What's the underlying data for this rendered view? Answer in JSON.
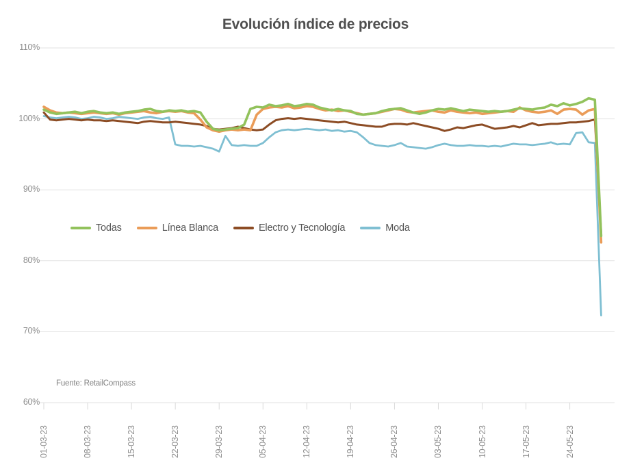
{
  "chart_data": {
    "type": "line",
    "title": "Evolución índice de precios",
    "source": "Fuente: RetailCompass",
    "ylim": [
      60,
      110
    ],
    "grid": "horizontal",
    "legend_position": "inside-left-middle",
    "y_ticks": [
      110,
      100,
      90,
      80,
      70,
      60
    ],
    "y_ticklabels": [
      "110%",
      "100%",
      "90%",
      "80%",
      "70%",
      "60%"
    ],
    "x_ticklabels": [
      "01-03-23",
      "08-03-23",
      "15-03-23",
      "22-03-23",
      "29-03-23",
      "05-04-23",
      "12-04-23",
      "19-04-23",
      "26-04-23",
      "03-05-23",
      "10-05-23",
      "17-05-23",
      "24-05-23"
    ],
    "x": [
      "01-03-23",
      "02-03-23",
      "03-03-23",
      "04-03-23",
      "05-03-23",
      "06-03-23",
      "07-03-23",
      "08-03-23",
      "09-03-23",
      "10-03-23",
      "11-03-23",
      "12-03-23",
      "13-03-23",
      "14-03-23",
      "15-03-23",
      "16-03-23",
      "17-03-23",
      "18-03-23",
      "19-03-23",
      "20-03-23",
      "21-03-23",
      "22-03-23",
      "23-03-23",
      "24-03-23",
      "25-03-23",
      "26-03-23",
      "27-03-23",
      "28-03-23",
      "29-03-23",
      "30-03-23",
      "31-03-23",
      "01-04-23",
      "02-04-23",
      "03-04-23",
      "04-04-23",
      "05-04-23",
      "06-04-23",
      "07-04-23",
      "08-04-23",
      "09-04-23",
      "10-04-23",
      "11-04-23",
      "12-04-23",
      "13-04-23",
      "14-04-23",
      "15-04-23",
      "16-04-23",
      "17-04-23",
      "18-04-23",
      "19-04-23",
      "20-04-23",
      "21-04-23",
      "22-04-23",
      "23-04-23",
      "24-04-23",
      "25-04-23",
      "26-04-23",
      "27-04-23",
      "28-04-23",
      "29-04-23",
      "30-04-23",
      "01-05-23",
      "02-05-23",
      "03-05-23",
      "04-05-23",
      "05-05-23",
      "06-05-23",
      "07-05-23",
      "08-05-23",
      "09-05-23",
      "10-05-23",
      "11-05-23",
      "12-05-23",
      "13-05-23",
      "14-05-23",
      "15-05-23",
      "16-05-23",
      "17-05-23",
      "18-05-23",
      "19-05-23",
      "20-05-23",
      "21-05-23",
      "22-05-23",
      "23-05-23",
      "24-05-23",
      "25-05-23",
      "26-05-23",
      "27-05-23",
      "28-05-23",
      "29-05-23"
    ],
    "series": [
      {
        "name": "Todas",
        "color": "#92c25c",
        "values": [
          101.3,
          100.9,
          100.7,
          100.8,
          100.9,
          101.0,
          100.8,
          101.0,
          101.1,
          100.9,
          100.8,
          100.9,
          100.7,
          100.9,
          101.0,
          101.1,
          101.3,
          101.4,
          101.1,
          101.0,
          101.2,
          101.1,
          101.2,
          101.0,
          101.1,
          100.9,
          99.6,
          98.6,
          98.4,
          98.5,
          98.6,
          98.7,
          99.2,
          101.4,
          101.7,
          101.6,
          102.0,
          101.8,
          101.9,
          102.1,
          101.8,
          101.9,
          102.1,
          102.0,
          101.6,
          101.4,
          101.2,
          101.4,
          101.2,
          101.1,
          100.7,
          100.6,
          100.7,
          100.8,
          101.1,
          101.3,
          101.4,
          101.5,
          101.2,
          100.9,
          100.7,
          100.9,
          101.2,
          101.4,
          101.3,
          101.5,
          101.3,
          101.1,
          101.3,
          101.2,
          101.1,
          101.0,
          101.1,
          101.0,
          101.1,
          101.3,
          101.5,
          101.4,
          101.3,
          101.5,
          101.6,
          102.0,
          101.8,
          102.2,
          101.9,
          102.1,
          102.4,
          102.9,
          102.7,
          83.5
        ]
      },
      {
        "name": "Línea Blanca",
        "color": "#ea9c58",
        "values": [
          101.7,
          101.2,
          100.9,
          100.8,
          100.9,
          100.8,
          100.7,
          100.8,
          100.9,
          100.8,
          100.7,
          100.8,
          100.6,
          100.8,
          100.9,
          101.0,
          101.1,
          100.9,
          100.8,
          101.0,
          101.1,
          101.0,
          101.1,
          100.9,
          100.8,
          99.9,
          98.8,
          98.4,
          98.2,
          98.4,
          98.5,
          98.4,
          98.5,
          98.4,
          100.6,
          101.4,
          101.6,
          101.7,
          101.6,
          101.8,
          101.5,
          101.6,
          101.8,
          101.7,
          101.4,
          101.2,
          101.3,
          101.1,
          101.2,
          101.0,
          100.8,
          100.6,
          100.7,
          100.8,
          101.0,
          101.2,
          101.4,
          101.3,
          101.0,
          100.9,
          101.0,
          101.1,
          101.2,
          101.0,
          100.9,
          101.2,
          101.0,
          100.9,
          100.8,
          100.9,
          100.7,
          100.8,
          100.9,
          101.0,
          101.1,
          101.0,
          101.6,
          101.2,
          101.0,
          100.9,
          101.0,
          101.2,
          100.7,
          101.3,
          101.4,
          101.3,
          100.6,
          101.2,
          101.4,
          82.6
        ]
      },
      {
        "name": "Electro y Tecnología",
        "color": "#8c4c24",
        "values": [
          100.9,
          99.9,
          99.8,
          99.9,
          100.0,
          99.9,
          99.8,
          99.9,
          99.8,
          99.8,
          99.7,
          99.8,
          99.7,
          99.6,
          99.5,
          99.4,
          99.6,
          99.7,
          99.6,
          99.5,
          99.5,
          99.6,
          99.5,
          99.4,
          99.3,
          99.2,
          99.0,
          98.6,
          98.5,
          98.6,
          98.7,
          98.9,
          98.7,
          98.5,
          98.4,
          98.5,
          99.2,
          99.8,
          100.0,
          100.1,
          100.0,
          100.1,
          100.0,
          99.9,
          99.8,
          99.7,
          99.6,
          99.5,
          99.6,
          99.4,
          99.2,
          99.1,
          99.0,
          98.9,
          98.9,
          99.2,
          99.3,
          99.3,
          99.2,
          99.4,
          99.2,
          99.0,
          98.8,
          98.6,
          98.3,
          98.5,
          98.8,
          98.7,
          98.9,
          99.1,
          99.2,
          98.9,
          98.6,
          98.7,
          98.8,
          99.0,
          98.8,
          99.1,
          99.4,
          99.1,
          99.2,
          99.3,
          99.3,
          99.4,
          99.5,
          99.5,
          99.6,
          99.7,
          99.9,
          83.9
        ]
      },
      {
        "name": "Moda",
        "color": "#7fbfd2",
        "values": [
          100.4,
          100.2,
          100.1,
          100.2,
          100.3,
          100.2,
          100.0,
          100.1,
          100.3,
          100.2,
          100.0,
          100.1,
          100.3,
          100.2,
          100.1,
          100.0,
          100.2,
          100.3,
          100.1,
          100.0,
          100.2,
          96.4,
          96.2,
          96.2,
          96.1,
          96.2,
          96.0,
          95.8,
          95.4,
          97.6,
          96.3,
          96.2,
          96.3,
          96.2,
          96.2,
          96.6,
          97.4,
          98.1,
          98.4,
          98.5,
          98.4,
          98.5,
          98.6,
          98.5,
          98.4,
          98.5,
          98.3,
          98.4,
          98.2,
          98.3,
          98.1,
          97.4,
          96.6,
          96.3,
          96.2,
          96.1,
          96.3,
          96.6,
          96.1,
          96.0,
          95.9,
          95.8,
          96.0,
          96.3,
          96.5,
          96.3,
          96.2,
          96.2,
          96.3,
          96.2,
          96.2,
          96.1,
          96.2,
          96.1,
          96.3,
          96.5,
          96.4,
          96.4,
          96.3,
          96.4,
          96.5,
          96.7,
          96.4,
          96.5,
          96.4,
          98.0,
          98.1,
          96.7,
          96.6,
          72.3
        ]
      }
    ],
    "style": {
      "grid_color": "#e2e2e2",
      "tick_color": "#d9d9d9",
      "title_color": "#4f4f4f",
      "axis_label_color": "#8c8c8c",
      "legend_text_color": "#545454"
    }
  }
}
